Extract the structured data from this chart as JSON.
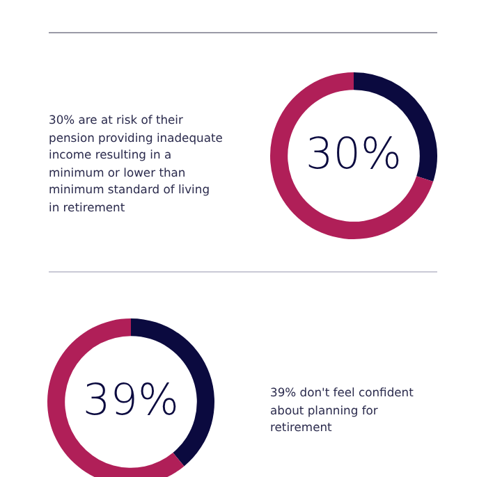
{
  "chart_data": [
    {
      "type": "donut",
      "categories": [
        null,
        null
      ],
      "values": [
        30,
        70
      ],
      "colors": [
        "#0b0a3f",
        "#b01f58"
      ],
      "value_labels": [
        "30%",
        null
      ],
      "annotations": [
        "30% are at risk of their pension providing inadequate income resulting in a minimum or lower than minimum standard of living in retirement"
      ]
    },
    {
      "type": "donut",
      "categories": [
        null,
        null
      ],
      "values": [
        39,
        61
      ],
      "colors": [
        "#0b0a3f",
        "#b01f58"
      ],
      "value_labels": [
        "39%",
        null
      ],
      "annotations": [
        "39% don't feel confident about planning for retirement"
      ]
    }
  ]
}
